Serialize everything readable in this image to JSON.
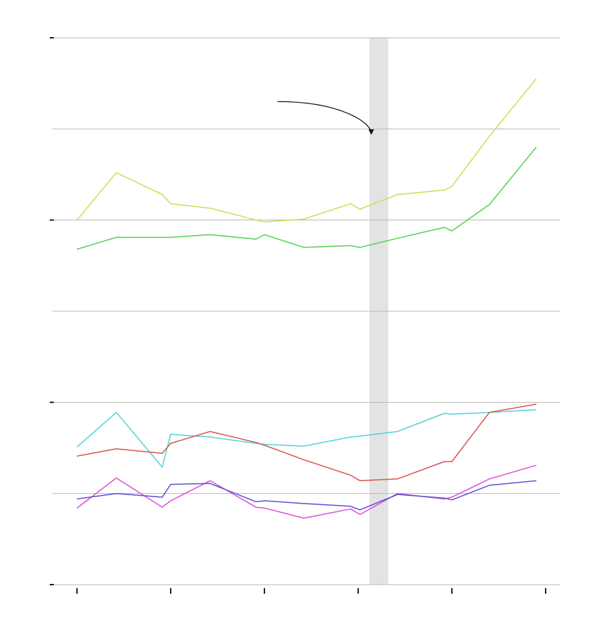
{
  "chart_data": {
    "type": "line",
    "title": "",
    "xlabel": "",
    "ylabel": "",
    "xlim": [
      0,
      24.4
    ],
    "ylim": [
      0,
      6
    ],
    "x_ticks": [
      0,
      5,
      10,
      15,
      20,
      25
    ],
    "y_ticks": [
      0,
      2,
      4,
      6
    ],
    "grid": true,
    "legend": "none",
    "shaded_band": {
      "x": [
        15.6,
        16.6
      ],
      "color": "#e3e3e3"
    },
    "annotation": {
      "from": [
        10.7,
        5.3
      ],
      "to": [
        15.7,
        4.95
      ],
      "text": ""
    },
    "series": [
      {
        "color": "#d4d94f",
        "x": [
          0,
          2.1,
          4.55,
          5,
          7.1,
          9.95,
          12.1,
          14.6,
          15.1,
          17.1,
          19.6,
          20,
          22,
          24.5
        ],
        "values": [
          4.0,
          4.52,
          4.28,
          4.18,
          4.13,
          3.98,
          4.01,
          4.18,
          4.12,
          4.28,
          4.33,
          4.37,
          4.92,
          5.55
        ]
      },
      {
        "color": "#4fd34f",
        "x": [
          0,
          2.1,
          4.55,
          5,
          7.1,
          9.55,
          10,
          12.1,
          14.6,
          15.1,
          17.1,
          19.6,
          20,
          22,
          24.5
        ],
        "values": [
          3.68,
          3.81,
          3.81,
          3.81,
          3.84,
          3.79,
          3.84,
          3.7,
          3.72,
          3.7,
          3.8,
          3.92,
          3.88,
          4.17,
          4.8
        ]
      },
      {
        "color": "#4fd3d9",
        "x": [
          0,
          2.1,
          4.55,
          5,
          7.1,
          9.55,
          10,
          12.1,
          14.6,
          15.1,
          17.1,
          19.6,
          20,
          22,
          24.5
        ],
        "values": [
          1.51,
          1.89,
          1.29,
          1.65,
          1.62,
          1.55,
          1.54,
          1.52,
          1.62,
          1.63,
          1.68,
          1.88,
          1.87,
          1.89,
          1.92
        ]
      },
      {
        "color": "#d9534f",
        "x": [
          0,
          2.1,
          4.55,
          5,
          7.1,
          9.55,
          10,
          12.1,
          14.6,
          15.1,
          17.1,
          19.6,
          20,
          22,
          24.5
        ],
        "values": [
          1.41,
          1.49,
          1.44,
          1.55,
          1.68,
          1.56,
          1.53,
          1.37,
          1.2,
          1.14,
          1.16,
          1.35,
          1.35,
          1.89,
          1.98
        ]
      },
      {
        "color": "#d94fd9",
        "x": [
          0,
          2.1,
          4.55,
          5,
          7.1,
          9.55,
          10,
          12.1,
          14.6,
          15.1,
          17.1,
          19.6,
          20,
          22,
          24.5
        ],
        "values": [
          0.84,
          1.17,
          0.85,
          0.92,
          1.14,
          0.85,
          0.84,
          0.73,
          0.83,
          0.77,
          1.0,
          0.94,
          0.96,
          1.16,
          1.31
        ]
      },
      {
        "color": "#5a4fd4",
        "x": [
          0,
          2.1,
          4.55,
          5,
          7.1,
          9.55,
          10,
          12.1,
          14.6,
          15.1,
          17.1,
          19.6,
          20,
          22,
          24.5
        ],
        "values": [
          0.94,
          1.0,
          0.96,
          1.1,
          1.11,
          0.91,
          0.92,
          0.89,
          0.86,
          0.82,
          0.99,
          0.95,
          0.93,
          1.09,
          1.14
        ]
      }
    ]
  }
}
